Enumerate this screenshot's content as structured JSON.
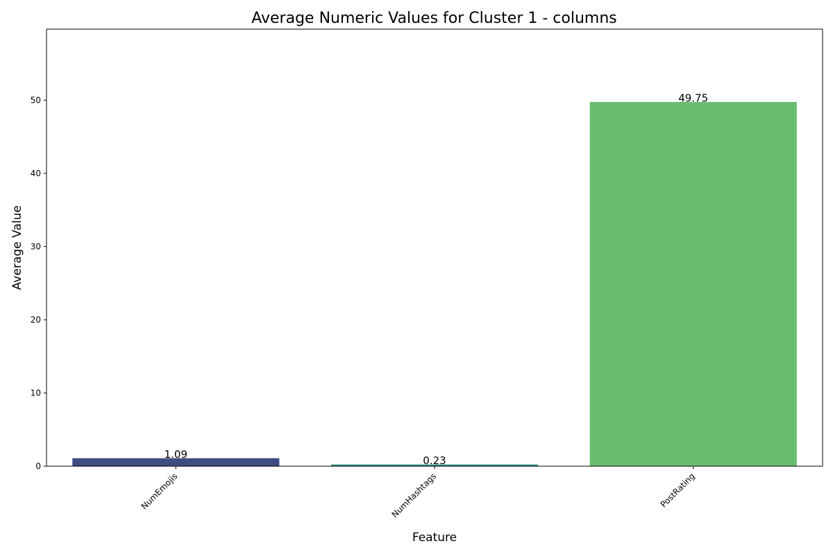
{
  "chart_data": {
    "type": "bar",
    "title": "Average Numeric Values for Cluster 1 - columns",
    "xlabel": "Feature",
    "ylabel": "Average Value",
    "categories": [
      "NumEmojis",
      "NumHashtags",
      "PostRating"
    ],
    "values": [
      1.09,
      0.23,
      49.75
    ],
    "data_labels": [
      "1.09",
      "0.23",
      "49.75"
    ],
    "colors": [
      "#3e4c81",
      "#2c8c7d",
      "#6abd6d"
    ],
    "ylim": [
      0,
      59.7
    ],
    "yticks": [
      0,
      10,
      20,
      30,
      40,
      50
    ],
    "grid": false,
    "legend": "none",
    "x_tick_rotation": "45 degrees"
  }
}
